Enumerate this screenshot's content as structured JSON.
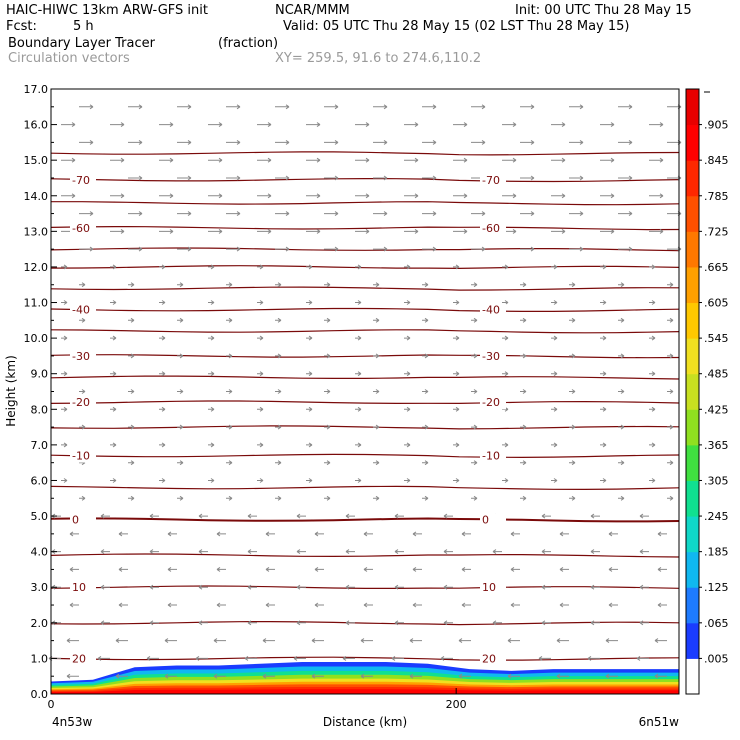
{
  "header": {
    "model": "HAIC-HIWC 13km ARW-GFS init",
    "org": "NCAR/MMM",
    "init": "Init: 00 UTC Thu 28 May 15",
    "fcst_label": "Fcst:",
    "fcst_value": "5 h",
    "valid": "Valid: 05 UTC Thu 28 May 15 (02 LST Thu 28 May 15)",
    "field": "Boundary Layer Tracer",
    "field_units": "(fraction)",
    "vectors": "Circulation vectors",
    "xy": "XY= 259.5, 91.6 to 274.6,110.2"
  },
  "chart_data": {
    "type": "heatmap",
    "xlabel": "Distance (km)",
    "ylabel": "Height (km)",
    "xlim": [
      0,
      310
    ],
    "ylim": [
      0,
      17
    ],
    "x_ticks": [
      {
        "value": 0,
        "label": "0"
      },
      {
        "value": 200,
        "label": "200"
      }
    ],
    "x_end_labels": {
      "left": "4n53w",
      "right": "6n51w"
    },
    "y_ticks": [
      "0.0",
      "1.0",
      "2.0",
      "3.0",
      "4.0",
      "5.0",
      "6.0",
      "7.0",
      "8.0",
      "9.0",
      "10.0",
      "11.0",
      "12.0",
      "13.0",
      "14.0",
      "15.0",
      "16.0",
      "17.0"
    ],
    "colorbar": {
      "labels": [
        ".005",
        ".065",
        ".125",
        ".185",
        ".245",
        ".305",
        ".365",
        ".425",
        ".485",
        ".545",
        ".605",
        ".665",
        ".725",
        ".785",
        ".845",
        ".905"
      ],
      "colors": [
        "#ffffff",
        "#1a3cff",
        "#1e7bff",
        "#10b8f0",
        "#10d8c8",
        "#10e090",
        "#40e040",
        "#90e020",
        "#c8e020",
        "#f0e020",
        "#ffc800",
        "#ffa000",
        "#ff7800",
        "#ff5000",
        "#ff2800",
        "#ff0000",
        "#e80000"
      ]
    },
    "isotherm_labels": [
      {
        "value": "-70",
        "height": 14.45
      },
      {
        "value": "-60",
        "height": 13.1
      },
      {
        "value": "-40",
        "height": 10.8
      },
      {
        "value": "-30",
        "height": 9.5
      },
      {
        "value": "-20",
        "height": 8.2
      },
      {
        "value": "-10",
        "height": 6.7
      },
      {
        "value": "0",
        "height": 4.9
      },
      {
        "value": "10",
        "height": 3.0
      },
      {
        "value": "20",
        "height": 1.0
      }
    ],
    "contour_heights": [
      1.0,
      2.0,
      3.0,
      3.9,
      4.9,
      5.8,
      6.7,
      7.5,
      8.2,
      8.9,
      9.5,
      10.2,
      10.8,
      11.4,
      12.0,
      12.5,
      13.1,
      13.8,
      14.45,
      15.2
    ],
    "tracer_top_km": [
      0.35,
      0.4,
      0.75,
      0.8,
      0.8,
      0.85,
      0.9,
      0.9,
      0.9,
      0.85,
      0.7,
      0.65,
      0.7,
      0.7,
      0.7,
      0.7
    ],
    "vectors": {
      "upper_dir": "east",
      "lower_dir": "west",
      "reversal_km": 5.2
    }
  }
}
